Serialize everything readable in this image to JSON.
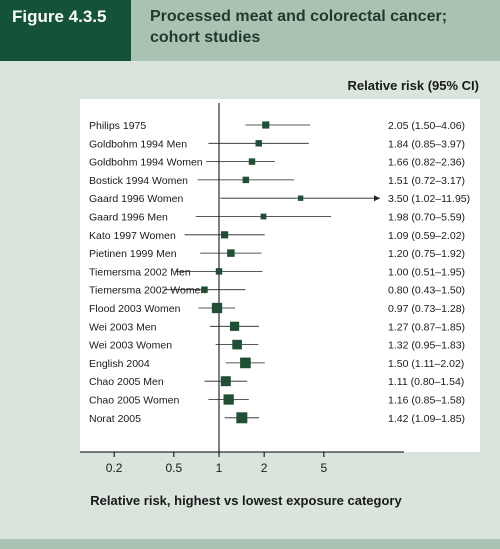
{
  "figure": {
    "label": "Figure 4.3.5",
    "title": "Processed meat and colorectal cancer; cohort studies"
  },
  "colors": {
    "header_dark": "#145338",
    "header_light": "#a9c3b3",
    "marker": "#1f4f35",
    "background": "#d8e4dc"
  },
  "chart_data": {
    "type": "scatter",
    "subtype": "forest-plot",
    "value_column_header": "Relative risk (95% CI)",
    "xlabel": "Relative risk, highest vs lowest exposure category",
    "x_scale": "log",
    "x_ticks": [
      0.2,
      0.5,
      1,
      2,
      5
    ],
    "x_tick_labels": [
      "0.2",
      "0.5",
      "1",
      "2",
      "5"
    ],
    "reference_line": 1,
    "rows": [
      {
        "study": "Philips 1975",
        "rr": 2.05,
        "lo": 1.5,
        "hi": 4.06,
        "ci_text": "2.05 (1.50–4.06)",
        "weight": 0.45
      },
      {
        "study": "Goldbohm 1994 Men",
        "rr": 1.84,
        "lo": 0.85,
        "hi": 3.97,
        "ci_text": "1.84 (0.85–3.97)",
        "weight": 0.35
      },
      {
        "study": "Goldbohm 1994 Women",
        "rr": 1.66,
        "lo": 0.82,
        "hi": 2.36,
        "ci_text": "1.66 (0.82–2.36)",
        "weight": 0.35
      },
      {
        "study": "Bostick 1994 Women",
        "rr": 1.51,
        "lo": 0.72,
        "hi": 3.17,
        "ci_text": "1.51 (0.72–3.17)",
        "weight": 0.35
      },
      {
        "study": "Gaard 1996 Women",
        "rr": 3.5,
        "lo": 1.02,
        "hi": 11.95,
        "ci_text": "3.50 (1.02–11.95)",
        "weight": 0.2
      },
      {
        "study": "Gaard 1996  Men",
        "rr": 1.98,
        "lo": 0.7,
        "hi": 5.59,
        "ci_text": "1.98 (0.70–5.59)",
        "weight": 0.25
      },
      {
        "study": "Kato 1997 Women",
        "rr": 1.09,
        "lo": 0.59,
        "hi": 2.02,
        "ci_text": "1.09 (0.59–2.02)",
        "weight": 0.45
      },
      {
        "study": "Pietinen 1999 Men",
        "rr": 1.2,
        "lo": 0.75,
        "hi": 1.92,
        "ci_text": "1.20 (0.75–1.92)",
        "weight": 0.5
      },
      {
        "study": "Tiemersma 2002  Men",
        "rr": 1.0,
        "lo": 0.51,
        "hi": 1.95,
        "ci_text": "1.00 (0.51–1.95)",
        "weight": 0.35
      },
      {
        "study": "Tiemersma 2002 Women",
        "rr": 0.8,
        "lo": 0.43,
        "hi": 1.5,
        "ci_text": "0.80 (0.43–1.50)",
        "weight": 0.35
      },
      {
        "study": "Flood 2003 Women",
        "rr": 0.97,
        "lo": 0.73,
        "hi": 1.28,
        "ci_text": "0.97 (0.73–1.28)",
        "weight": 0.9
      },
      {
        "study": "Wei 2003 Men",
        "rr": 1.27,
        "lo": 0.87,
        "hi": 1.85,
        "ci_text": "1.27 (0.87–1.85)",
        "weight": 0.75
      },
      {
        "study": "Wei 2003 Women",
        "rr": 1.32,
        "lo": 0.95,
        "hi": 1.83,
        "ci_text": "1.32 (0.95–1.83)",
        "weight": 0.8
      },
      {
        "study": "English 2004",
        "rr": 1.5,
        "lo": 1.11,
        "hi": 2.02,
        "ci_text": "1.50 (1.11–2.02)",
        "weight": 0.95
      },
      {
        "study": "Chao 2005  Men",
        "rr": 1.11,
        "lo": 0.8,
        "hi": 1.54,
        "ci_text": "1.11 (0.80–1.54)",
        "weight": 0.85
      },
      {
        "study": "Chao 2005 Women",
        "rr": 1.16,
        "lo": 0.85,
        "hi": 1.58,
        "ci_text": "1.16 (0.85–1.58)",
        "weight": 0.9
      },
      {
        "study": "Norat 2005",
        "rr": 1.42,
        "lo": 1.09,
        "hi": 1.85,
        "ci_text": "1.42 (1.09–1.85)",
        "weight": 1.0
      }
    ]
  }
}
